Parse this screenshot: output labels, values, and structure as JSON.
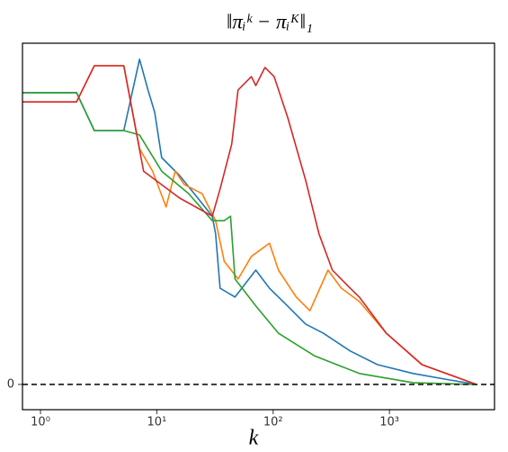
{
  "chart_data": {
    "type": "line",
    "title": "‖πᵢᵏ − πᵢᴷ‖₁",
    "x_label": "k",
    "xscale": "log",
    "xlim": [
      0.7,
      8000
    ],
    "xticks": [
      {
        "value": 1,
        "label": "10⁰"
      },
      {
        "value": 10,
        "label": "10¹"
      },
      {
        "value": 100,
        "label": "10²"
      },
      {
        "value": 1000,
        "label": "10³"
      }
    ],
    "ylim": [
      -0.074,
      1
    ],
    "yticks": [
      0
    ],
    "hline": 0,
    "series": [
      {
        "color": "#1f77b4",
        "x": [
          0.7,
          2.04,
          2.9,
          5.2,
          7.1,
          8.4,
          9.6,
          11,
          15.7,
          22.5,
          30,
          32,
          35,
          47,
          71,
          93,
          133,
          190,
          270,
          460,
          790,
          1600,
          3300,
          5600
        ],
        "values": [
          0.855,
          0.855,
          0.744,
          0.744,
          0.953,
          0.863,
          0.797,
          0.665,
          0.612,
          0.546,
          0.493,
          0.441,
          0.282,
          0.256,
          0.335,
          0.282,
          0.23,
          0.177,
          0.15,
          0.098,
          0.058,
          0.032,
          0.013,
          0
        ]
      },
      {
        "color": "#ff7f0e",
        "x": [
          0.7,
          2.04,
          2.9,
          5.2,
          7.1,
          9.2,
          12,
          14.4,
          17.2,
          24.5,
          32,
          38,
          50,
          65,
          93,
          111,
          158,
          207,
          296,
          386,
          551,
          940,
          1914,
          5600
        ],
        "values": [
          0.828,
          0.828,
          0.934,
          0.934,
          0.691,
          0.625,
          0.52,
          0.625,
          0.586,
          0.559,
          0.48,
          0.361,
          0.309,
          0.375,
          0.414,
          0.335,
          0.256,
          0.216,
          0.335,
          0.282,
          0.243,
          0.15,
          0.058,
          0
        ]
      },
      {
        "color": "#2ca02c",
        "x": [
          0.7,
          2.04,
          2.9,
          5.2,
          7.1,
          11,
          18.8,
          30,
          38,
          43,
          47,
          71,
          111,
          226,
          551,
          1600,
          5600
        ],
        "values": [
          0.855,
          0.855,
          0.744,
          0.744,
          0.731,
          0.625,
          0.559,
          0.48,
          0.48,
          0.493,
          0.309,
          0.23,
          0.15,
          0.084,
          0.032,
          0.005,
          0
        ]
      },
      {
        "color": "#d62728",
        "x": [
          0.7,
          2.04,
          2.9,
          5.2,
          7.7,
          15.7,
          30,
          35,
          44,
          50,
          65,
          71,
          85,
          102,
          133,
          190,
          248,
          323,
          460,
          550,
          940,
          1900,
          5600
        ],
        "values": [
          0.828,
          0.828,
          0.934,
          0.934,
          0.625,
          0.546,
          0.493,
          0.573,
          0.704,
          0.863,
          0.902,
          0.876,
          0.929,
          0.902,
          0.784,
          0.599,
          0.441,
          0.335,
          0.282,
          0.256,
          0.15,
          0.058,
          0
        ]
      }
    ]
  }
}
